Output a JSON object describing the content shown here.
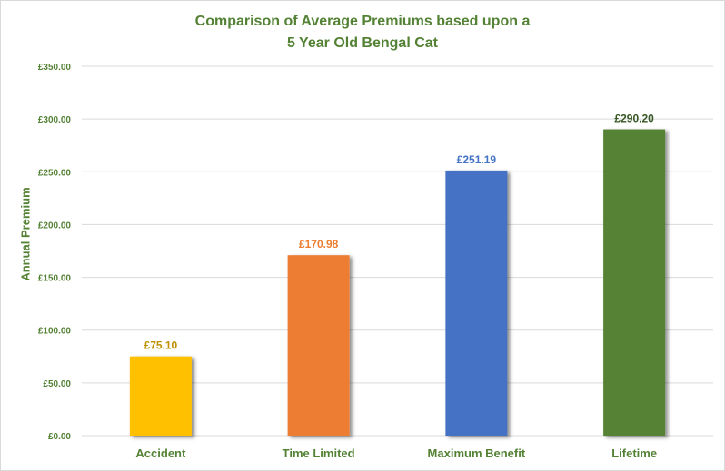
{
  "chart_data": {
    "type": "bar",
    "title": "Comparison of Average Premiums based upon a",
    "subtitle": "5 Year Old Bengal Cat",
    "ylabel": "Annual Premium",
    "xlabel": "",
    "ylim": [
      0,
      350
    ],
    "yticks": [
      "£0.00",
      "£50.00",
      "£100.00",
      "£150.00",
      "£200.00",
      "£250.00",
      "£300.00",
      "£350.00"
    ],
    "ytick_values": [
      0,
      50,
      100,
      150,
      200,
      250,
      300,
      350
    ],
    "categories": [
      "Accident",
      "Time Limited",
      "Maximum Benefit",
      "Lifetime"
    ],
    "values": [
      75.1,
      170.98,
      251.19,
      290.2
    ],
    "data_labels": [
      "£75.10",
      "£170.98",
      "£251.19",
      "£290.20"
    ],
    "colors": [
      "#FFC000",
      "#ED7D31",
      "#4472C4",
      "#548235"
    ],
    "label_colors": [
      "#BF9000",
      "#ED7D31",
      "#4472C4",
      "#375623"
    ],
    "grid": true,
    "legend": "none"
  },
  "colors": {
    "text_accent": "#548235",
    "gridline": "#d9d9d9"
  }
}
